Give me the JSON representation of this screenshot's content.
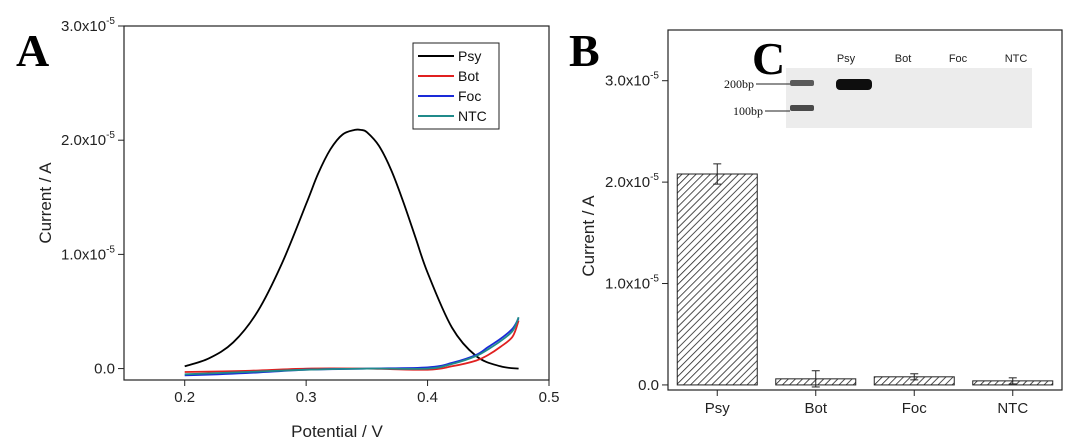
{
  "panels": {
    "a": "A",
    "b": "B",
    "c": "C"
  },
  "chart_data": [
    {
      "type": "line",
      "panel": "A",
      "xlabel": "Potential / V",
      "ylabel": "Current / A",
      "xlim": [
        0.15,
        0.5
      ],
      "ylim": [
        -1e-06,
        3e-05
      ],
      "x_ticks": [
        0.2,
        0.3,
        0.4,
        0.5
      ],
      "x_tick_labels": [
        "0.2",
        "0.3",
        "0.4",
        "0.5"
      ],
      "y_ticks": [
        0,
        1e-05,
        2e-05,
        3e-05
      ],
      "y_tick_labels": [
        {
          "mant": "0.0",
          "exp": ""
        },
        {
          "mant": "1.0x10",
          "exp": "-5"
        },
        {
          "mant": "2.0x10",
          "exp": "-5"
        },
        {
          "mant": "3.0x10",
          "exp": "-5"
        }
      ],
      "legend_position": "top-right",
      "series": [
        {
          "name": "Psy",
          "color": "#000000",
          "x": [
            0.2,
            0.22,
            0.24,
            0.26,
            0.28,
            0.3,
            0.31,
            0.32,
            0.33,
            0.34,
            0.345,
            0.35,
            0.36,
            0.37,
            0.38,
            0.39,
            0.4,
            0.42,
            0.44,
            0.46,
            0.475
          ],
          "y": [
            2e-07,
            9e-07,
            2.3e-06,
            5e-06,
            9.2e-06,
            1.44e-05,
            1.71e-05,
            1.92e-05,
            2.05e-05,
            2.09e-05,
            2.09e-05,
            2.07e-05,
            1.95e-05,
            1.74e-05,
            1.46e-05,
            1.15e-05,
            8.4e-06,
            3.6e-06,
            1.1e-06,
            2e-07,
            0.0
          ]
        },
        {
          "name": "Bot",
          "color": "#e02020",
          "x": [
            0.2,
            0.25,
            0.3,
            0.35,
            0.4,
            0.42,
            0.44,
            0.45,
            0.46,
            0.47,
            0.475
          ],
          "y": [
            -3e-07,
            -2e-07,
            0.0,
            0.0,
            -1e-07,
            2e-07,
            7e-07,
            1.2e-06,
            1.9e-06,
            2.8e-06,
            4.2e-06
          ]
        },
        {
          "name": "Foc",
          "color": "#1a2ad8",
          "x": [
            0.2,
            0.25,
            0.3,
            0.35,
            0.4,
            0.42,
            0.44,
            0.45,
            0.46,
            0.47,
            0.475
          ],
          "y": [
            -6e-07,
            -4e-07,
            -1e-07,
            0.0,
            1e-07,
            5e-07,
            1.2e-06,
            1.9e-06,
            2.6e-06,
            3.5e-06,
            4.4e-06
          ]
        },
        {
          "name": "NTC",
          "color": "#208a8a",
          "x": [
            0.2,
            0.25,
            0.3,
            0.35,
            0.4,
            0.42,
            0.44,
            0.45,
            0.46,
            0.47,
            0.475
          ],
          "y": [
            -5e-07,
            -3e-07,
            -1e-07,
            0.0,
            0.0,
            4e-07,
            1.1e-06,
            1.7e-06,
            2.4e-06,
            3.3e-06,
            4.5e-06
          ]
        }
      ]
    },
    {
      "type": "bar",
      "panel": "B",
      "xlabel": "",
      "ylabel": "Current / A",
      "ylim": [
        -5e-07,
        3.5e-05
      ],
      "categories": [
        "Psy",
        "Bot",
        "Foc",
        "NTC"
      ],
      "values": [
        2.08e-05,
        6e-07,
        8e-07,
        4e-07
      ],
      "errors": [
        1e-06,
        8e-07,
        3e-07,
        3e-07
      ],
      "y_ticks": [
        0,
        1e-05,
        2e-05,
        3e-05
      ],
      "y_tick_labels": [
        {
          "mant": "0.0",
          "exp": ""
        },
        {
          "mant": "1.0x10",
          "exp": "-5"
        },
        {
          "mant": "2.0x10",
          "exp": "-5"
        },
        {
          "mant": "3.0x10",
          "exp": "-5"
        }
      ],
      "bar_fill": "hatched"
    }
  ],
  "gel": {
    "lanes": [
      "Psy",
      "Bot",
      "Foc",
      "NTC"
    ],
    "markers": [
      "200bp",
      "100bp"
    ]
  }
}
